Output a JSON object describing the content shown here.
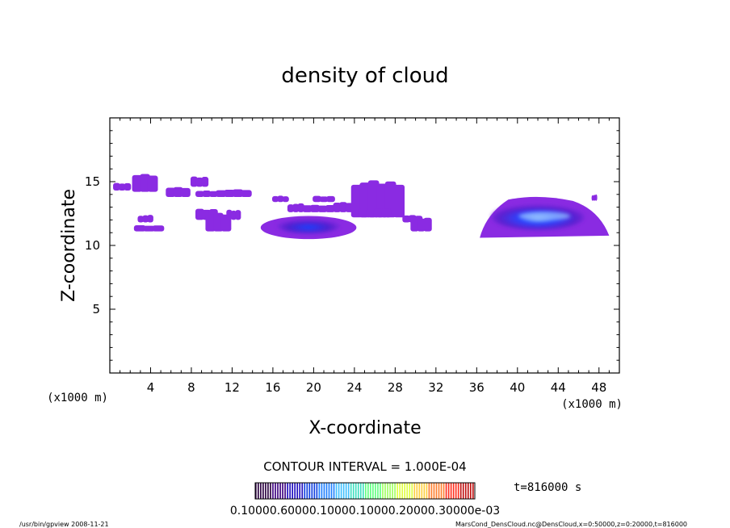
{
  "chart_data": {
    "type": "heatmap",
    "title": "density of cloud",
    "xlabel": "X-coordinate",
    "ylabel": "Z-coordinate",
    "x_unit_left": "(x1000 m)",
    "x_unit_right": "(x1000 m)",
    "x_ticks": [
      4,
      8,
      12,
      16,
      20,
      24,
      28,
      32,
      36,
      40,
      44,
      48
    ],
    "y_ticks": [
      5,
      10,
      15
    ],
    "xlim": [
      0,
      50
    ],
    "ylim": [
      0,
      20
    ],
    "contour_interval": "CONTOUR INTERVAL = 1.000E-04",
    "time_label": "t=816000 s",
    "colorbar_labels": "0.10000.60000.10000.10000.20000.30000e-03",
    "colorbar_colors": [
      "#2a0040",
      "#3c0080",
      "#2010c0",
      "#1040e0",
      "#2080ff",
      "#40c0ff",
      "#40e0c0",
      "#60ff80",
      "#a0ff60",
      "#e0ff40",
      "#ffd040",
      "#ff8030",
      "#ff3020",
      "#c01010"
    ],
    "cloud_color_low": "#8a2be2",
    "cloud_color_high": "#1e3cff",
    "clouds": [
      {
        "x": [
          0.4,
          2.0
        ],
        "z": [
          14.3,
          14.9
        ],
        "level": 1
      },
      {
        "x": [
          2.3,
          4.6
        ],
        "z": [
          14.2,
          15.6
        ],
        "level": 1
      },
      {
        "x": [
          2.8,
          4.2
        ],
        "z": [
          11.8,
          12.4
        ],
        "level": 1
      },
      {
        "x": [
          2.5,
          5.2
        ],
        "z": [
          11.1,
          11.6
        ],
        "level": 1
      },
      {
        "x": [
          5.6,
          7.8
        ],
        "z": [
          13.8,
          14.6
        ],
        "level": 1
      },
      {
        "x": [
          8.0,
          9.6
        ],
        "z": [
          14.6,
          15.4
        ],
        "level": 1
      },
      {
        "x": [
          8.5,
          10.5
        ],
        "z": [
          13.8,
          14.3
        ],
        "level": 1
      },
      {
        "x": [
          10.5,
          13.8
        ],
        "z": [
          13.8,
          14.4
        ],
        "level": 1
      },
      {
        "x": [
          8.5,
          10.5
        ],
        "z": [
          12.0,
          12.9
        ],
        "level": 1
      },
      {
        "x": [
          9.5,
          11.8
        ],
        "z": [
          11.1,
          12.6
        ],
        "level": 1
      },
      {
        "x": [
          11.5,
          12.8
        ],
        "z": [
          12.0,
          12.8
        ],
        "level": 1
      },
      {
        "x": [
          16.0,
          17.5
        ],
        "z": [
          13.4,
          13.9
        ],
        "level": 1
      },
      {
        "x": [
          17.5,
          19.0
        ],
        "z": [
          12.6,
          13.3
        ],
        "level": 1
      },
      {
        "x": [
          20.0,
          22.0
        ],
        "z": [
          13.4,
          13.9
        ],
        "level": 1
      },
      {
        "x": [
          19.0,
          22.0
        ],
        "z": [
          12.6,
          13.2
        ],
        "level": 1
      },
      {
        "x": [
          14.8,
          24.2
        ],
        "z": [
          10.5,
          12.3
        ],
        "level": 2
      },
      {
        "x": [
          22.0,
          23.8
        ],
        "z": [
          12.6,
          13.4
        ],
        "level": 1
      },
      {
        "x": [
          23.8,
          28.8
        ],
        "z": [
          12.2,
          15.1
        ],
        "level": 1
      },
      {
        "x": [
          24.5,
          27.5
        ],
        "z": [
          12.2,
          12.9
        ],
        "level": 1
      },
      {
        "x": [
          28.8,
          30.6
        ],
        "z": [
          11.8,
          12.4
        ],
        "level": 1
      },
      {
        "x": [
          29.6,
          31.5
        ],
        "z": [
          11.1,
          12.2
        ],
        "level": 1
      },
      {
        "x": [
          36.3,
          49.0
        ],
        "z": [
          10.6,
          14.0
        ],
        "level": 3
      },
      {
        "x": [
          47.3,
          47.8
        ],
        "z": [
          13.5,
          14.0
        ],
        "level": 1
      }
    ]
  },
  "footer": {
    "left": "/usr/bin/gpview   2008-11-21",
    "right": "MarsCond_DensCloud.nc@DensCloud,x=0:50000,z=0:20000,t=816000"
  }
}
